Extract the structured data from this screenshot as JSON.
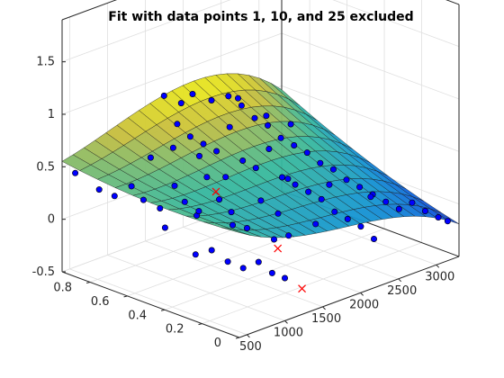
{
  "chart_data": {
    "type": "surface-scatter-3d",
    "title": "Fit with data points 1, 10, and 25 excluded",
    "xlabel": "",
    "ylabel": "",
    "zlabel": "",
    "x_ticks": [
      "500",
      "1000",
      "1500",
      "2000",
      "2500",
      "3000"
    ],
    "y_ticks": [
      "0",
      "0.2",
      "0.4",
      "0.6",
      "0.8"
    ],
    "z_ticks": [
      "-0.5",
      "0",
      "0.5",
      "1",
      "1.5"
    ],
    "xlim": [
      400,
      3300
    ],
    "ylim": [
      0,
      0.95
    ],
    "zlim": [
      -0.5,
      1.5
    ],
    "grid": true,
    "surface": {
      "colormap": "parula",
      "grid_x": [
        400,
        545,
        690,
        835,
        980,
        1125,
        1270,
        1415,
        1560,
        1705,
        1850,
        1995,
        2140,
        2285,
        2430,
        2575,
        2720,
        2865,
        3010,
        3155,
        3300
      ],
      "grid_y": [
        0,
        0.095,
        0.19,
        0.285,
        0.38,
        0.475,
        0.57,
        0.665,
        0.76,
        0.855,
        0.95
      ],
      "model_note_visible": false
    },
    "included_points": {
      "marker": "filled-circle",
      "color": "#0000ff",
      "edge": "#000000",
      "points": [
        [
          450,
          0.9,
          0.46
        ],
        [
          520,
          0.8,
          0.35
        ],
        [
          600,
          0.75,
          0.3
        ],
        [
          700,
          0.7,
          0.4
        ],
        [
          760,
          0.66,
          0.28
        ],
        [
          830,
          0.6,
          0.22
        ],
        [
          900,
          0.55,
          0.45
        ],
        [
          960,
          0.52,
          0.3
        ],
        [
          1020,
          0.48,
          0.18
        ],
        [
          1080,
          0.45,
          0.55
        ],
        [
          1120,
          0.4,
          0.36
        ],
        [
          1180,
          0.36,
          0.25
        ],
        [
          1240,
          0.3,
          0.12
        ],
        [
          1300,
          0.25,
          0.4
        ],
        [
          1350,
          0.2,
          0.05
        ],
        [
          1420,
          0.15,
          0.1
        ],
        [
          560,
          0.3,
          0.05
        ],
        [
          650,
          0.25,
          0.1
        ],
        [
          740,
          0.2,
          0.0
        ],
        [
          820,
          0.15,
          -0.05
        ],
        [
          900,
          0.1,
          0.02
        ],
        [
          980,
          0.06,
          -0.08
        ],
        [
          1050,
          0.02,
          -0.12
        ],
        [
          1500,
          0.85,
          0.95
        ],
        [
          1550,
          0.8,
          0.7
        ],
        [
          1600,
          0.75,
          0.6
        ],
        [
          1650,
          0.7,
          0.55
        ],
        [
          1700,
          0.65,
          0.5
        ],
        [
          1750,
          0.6,
          0.75
        ],
        [
          1800,
          0.55,
          0.45
        ],
        [
          1850,
          0.5,
          0.4
        ],
        [
          1900,
          0.45,
          0.6
        ],
        [
          1950,
          0.4,
          0.35
        ],
        [
          2000,
          0.35,
          0.3
        ],
        [
          2050,
          0.3,
          0.25
        ],
        [
          2100,
          0.25,
          0.2
        ],
        [
          2150,
          0.2,
          0.1
        ],
        [
          2200,
          0.15,
          0.05
        ],
        [
          2250,
          0.1,
          0.0
        ],
        [
          2300,
          0.05,
          -0.1
        ],
        [
          2350,
          0.85,
          0.72
        ],
        [
          2400,
          0.8,
          0.65
        ],
        [
          2450,
          0.75,
          0.55
        ],
        [
          2500,
          0.7,
          0.5
        ],
        [
          2550,
          0.65,
          0.4
        ],
        [
          2600,
          0.6,
          0.35
        ],
        [
          2650,
          0.55,
          0.3
        ],
        [
          2700,
          0.5,
          0.22
        ],
        [
          2750,
          0.45,
          0.18
        ],
        [
          2800,
          0.4,
          0.1
        ],
        [
          2850,
          0.35,
          0.05
        ],
        [
          2900,
          0.3,
          0.0
        ],
        [
          2950,
          0.25,
          -0.05
        ],
        [
          3000,
          0.2,
          -0.1
        ],
        [
          3050,
          0.15,
          -0.02
        ],
        [
          3100,
          0.1,
          -0.08
        ],
        [
          3150,
          0.05,
          -0.12
        ],
        [
          3200,
          0.02,
          -0.15
        ],
        [
          1350,
          0.6,
          0.58
        ],
        [
          1450,
          0.5,
          0.42
        ],
        [
          1250,
          0.7,
          0.62
        ],
        [
          1150,
          0.78,
          0.5
        ],
        [
          2000,
          0.9,
          0.8
        ],
        [
          2200,
          0.88,
          0.7
        ],
        [
          1800,
          0.88,
          0.78
        ],
        [
          2600,
          0.9,
          0.6
        ],
        [
          2850,
          0.85,
          0.4
        ],
        [
          3050,
          0.8,
          0.3
        ],
        [
          650,
          0.5,
          0.15
        ],
        [
          850,
          0.4,
          0.32
        ],
        [
          1050,
          0.3,
          0.2
        ],
        [
          1650,
          0.3,
          0.15
        ],
        [
          1900,
          0.2,
          0.05
        ],
        [
          2150,
          0.45,
          0.25
        ],
        [
          2450,
          0.35,
          0.18
        ],
        [
          2750,
          0.25,
          0.05
        ]
      ]
    },
    "excluded_points": {
      "marker": "x",
      "color": "#ff0000",
      "points": [
        [
          1200,
          0.45,
          0.38
        ],
        [
          1400,
          0.2,
          -0.05
        ],
        [
          1350,
          0.05,
          -0.32
        ]
      ]
    }
  }
}
